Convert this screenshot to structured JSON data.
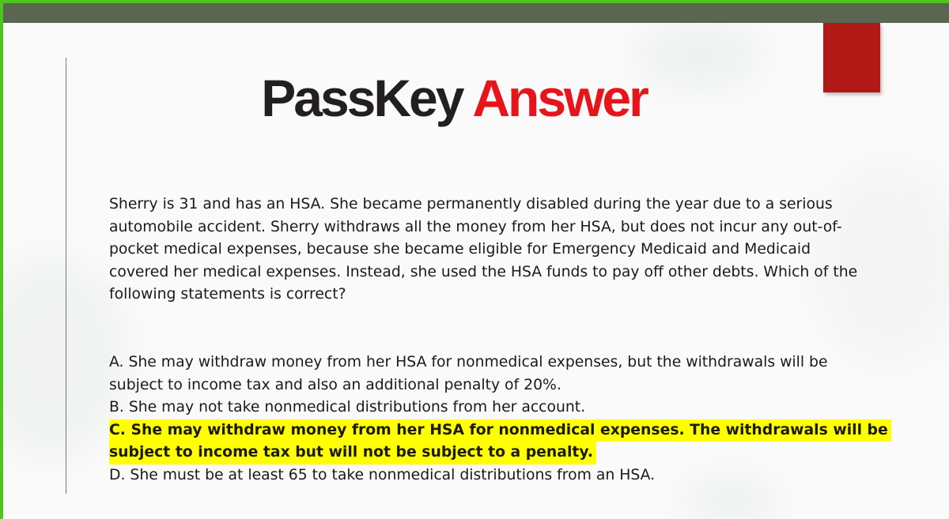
{
  "colors": {
    "border": "#4fc31e",
    "top_bar": "#5a6650",
    "accent_box": "#b01915",
    "title_black": "#231f20",
    "title_red": "#e8141b",
    "highlight": "#ffff00"
  },
  "slide": {
    "title_part1": "PassKey",
    "title_part2": "Answer",
    "question": "Sherry is 31 and has an HSA. She became permanently disabled during the year due to a serious automobile accident. Sherry withdraws all the money from her HSA, but does not incur any out-of-pocket medical expenses, because she became eligible for Emergency Medicaid and Medicaid covered her medical expenses. Instead, she used the HSA funds to pay off other debts. Which of the following statements is correct?",
    "answers": {
      "a": {
        "line1": "A. She may withdraw money from her HSA for nonmedical expenses, but the withdrawals will be",
        "line2": "subject to income tax and also an additional penalty of 20%."
      },
      "b": {
        "line1": "B. She may not take nonmedical distributions from her account."
      },
      "c": {
        "line1": "C. She may withdraw money from her HSA for nonmedical expenses. The withdrawals will be",
        "line2": "subject to income tax but will not be subject to a penalty.",
        "highlighted": true
      },
      "d": {
        "line1": "D. She must be at least 65 to take nonmedical distributions from an HSA."
      }
    }
  }
}
